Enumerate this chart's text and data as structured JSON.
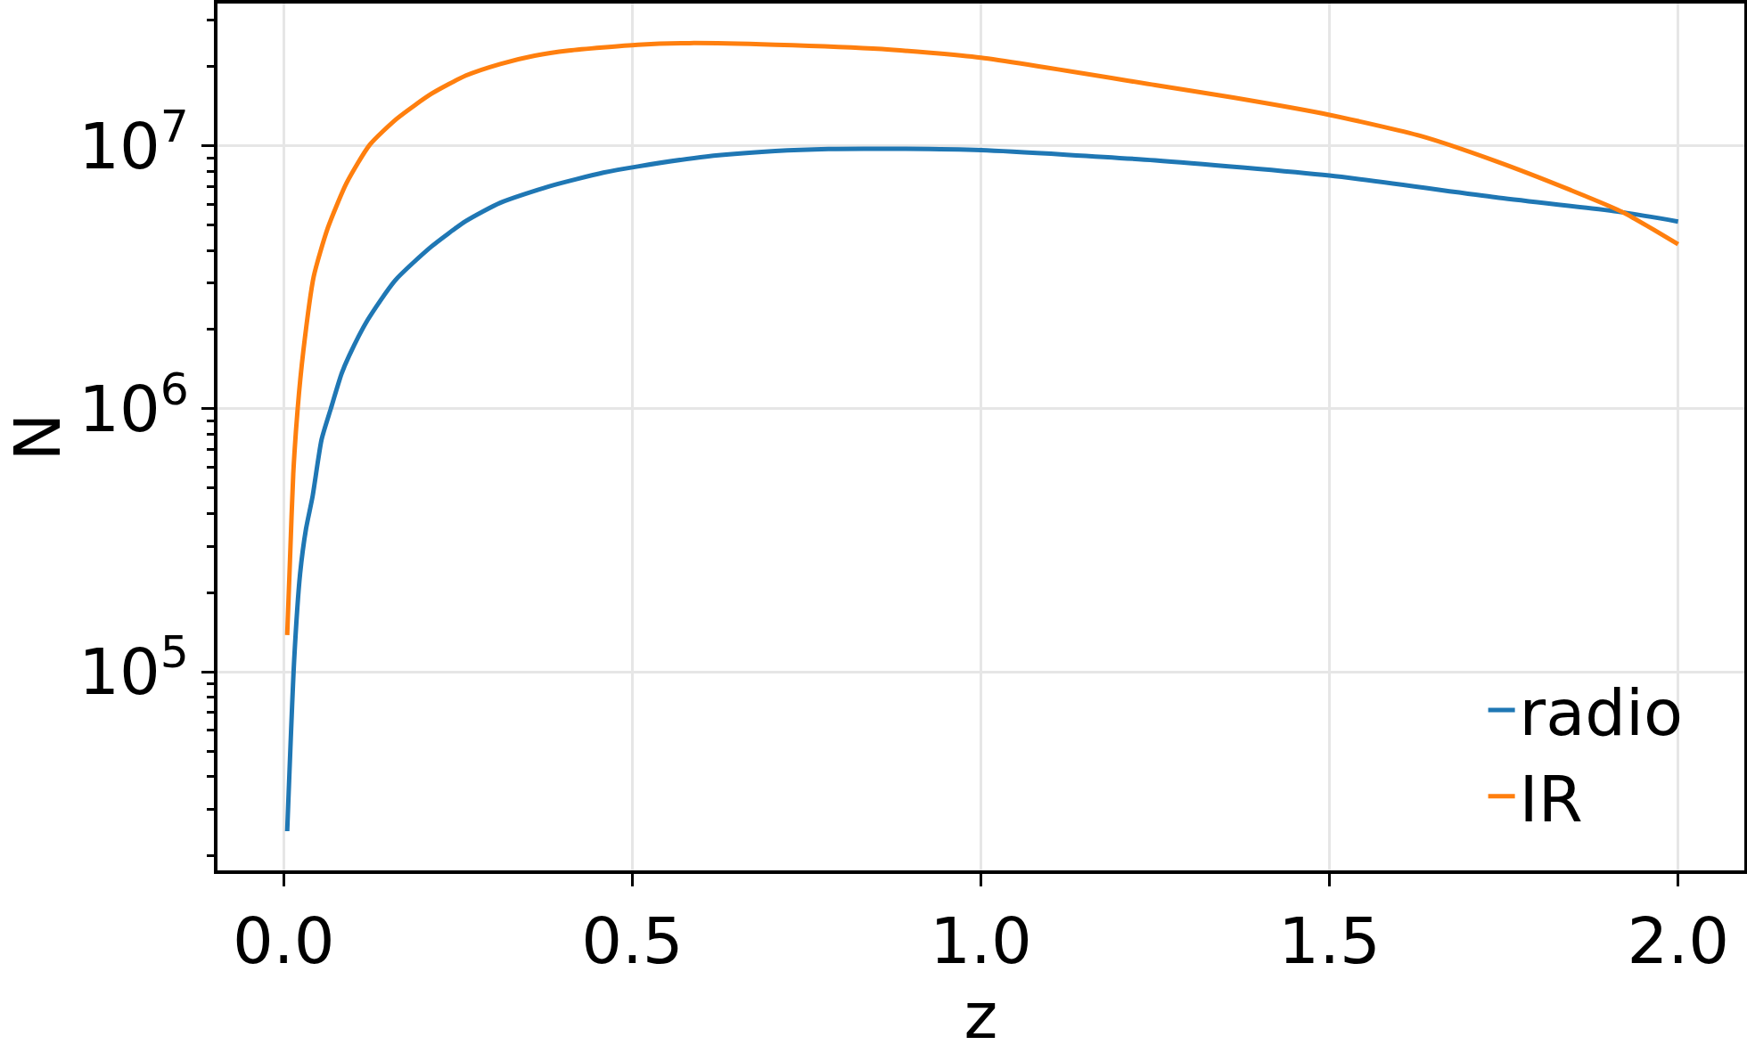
{
  "chart_data": {
    "type": "line",
    "xlabel": "z",
    "ylabel": "N",
    "series": [
      {
        "name": "radio",
        "color": "#1f77b4",
        "x": [
          0.005,
          0.015,
          0.0235,
          0.032,
          0.0413,
          0.0543,
          0.0675,
          0.083,
          0.0938,
          0.1201,
          0.1595,
          0.212,
          0.2613,
          0.3106,
          0.38,
          0.4585,
          0.5078,
          0.6063,
          0.705,
          0.7816,
          0.858,
          1.0,
          1.25,
          1.5,
          1.7384,
          1.9213,
          2.0
        ],
        "values": [
          24800,
          111000,
          236000,
          350000,
          463000,
          764000,
          1000000,
          1360000,
          1590000,
          2170000,
          3070000,
          4140000,
          5170000,
          6070000,
          7000000,
          7900000,
          8340000,
          9100000,
          9550000,
          9720000,
          9740000,
          9620000,
          8800000,
          7700000,
          6370000,
          5580000,
          5150000
        ]
      },
      {
        "name": "IR",
        "color": "#ff7f0e",
        "x": [
          0.005,
          0.009,
          0.0137,
          0.02,
          0.0281,
          0.043,
          0.063,
          0.09,
          0.1233,
          0.1628,
          0.212,
          0.2613,
          0.3106,
          0.36,
          0.409,
          0.508,
          0.582,
          0.705,
          0.858,
          1.0,
          1.25,
          1.362,
          1.5,
          1.6309,
          1.7384,
          1.846,
          1.9213,
          2.0
        ],
        "values": [
          138000,
          267000,
          566000,
          1000000,
          1655000,
          3180000,
          4850000,
          7200000,
          10070000,
          12700000,
          15760000,
          18480000,
          20450000,
          22000000,
          23000000,
          24200000,
          24550000,
          24200000,
          23300000,
          21600000,
          17000000,
          15240000,
          13100000,
          10890000,
          8740000,
          6780000,
          5580000,
          4220000
        ]
      }
    ],
    "xlim": [
      -0.095,
      2.095
    ],
    "xticks": [
      {
        "value": 0,
        "label": "0.0"
      },
      0.5,
      {
        "value": 1,
        "label": "1.0"
      },
      1.5,
      {
        "value": 2,
        "label": "2.0"
      }
    ],
    "ylim": [
      17600,
      34700000
    ],
    "yticks": [
      {
        "value": 20000,
        "label": null
      },
      {
        "value": 30000,
        "label": null
      },
      {
        "value": 40000,
        "label": null
      },
      {
        "value": 50000,
        "label": null
      },
      {
        "value": 60000,
        "label": null
      },
      {
        "value": 70000,
        "label": null
      },
      {
        "value": 80000,
        "label": null
      },
      {
        "value": 90000,
        "label": null
      },
      {
        "value": 100000,
        "label": "10$^{5}$"
      },
      {
        "value": 200000,
        "label": null
      },
      {
        "value": 300000,
        "label": null
      },
      {
        "value": 400000,
        "label": null
      },
      {
        "value": 500000,
        "label": null
      },
      {
        "value": 600000,
        "label": null
      },
      {
        "value": 700000,
        "label": null
      },
      {
        "value": 800000,
        "label": null
      },
      {
        "value": 900000,
        "label": null
      },
      {
        "value": 1000000,
        "label": "10$^{6}$"
      },
      {
        "value": 2000000,
        "label": null
      },
      {
        "value": 3000000,
        "label": null
      },
      {
        "value": 4000000,
        "label": null
      },
      {
        "value": 5000000,
        "label": null
      },
      {
        "value": 6000000,
        "label": null
      },
      {
        "value": 7000000,
        "label": null
      },
      {
        "value": 8000000,
        "label": null
      },
      {
        "value": 9000000,
        "label": null
      },
      {
        "value": 10000000,
        "label": "10$^{7}$"
      },
      {
        "value": 20000000,
        "label": null
      },
      {
        "value": 30000000,
        "label": null
      }
    ],
    "log": "y",
    "grid": true,
    "legend": "bottom right",
    "line_style": "solid"
  }
}
